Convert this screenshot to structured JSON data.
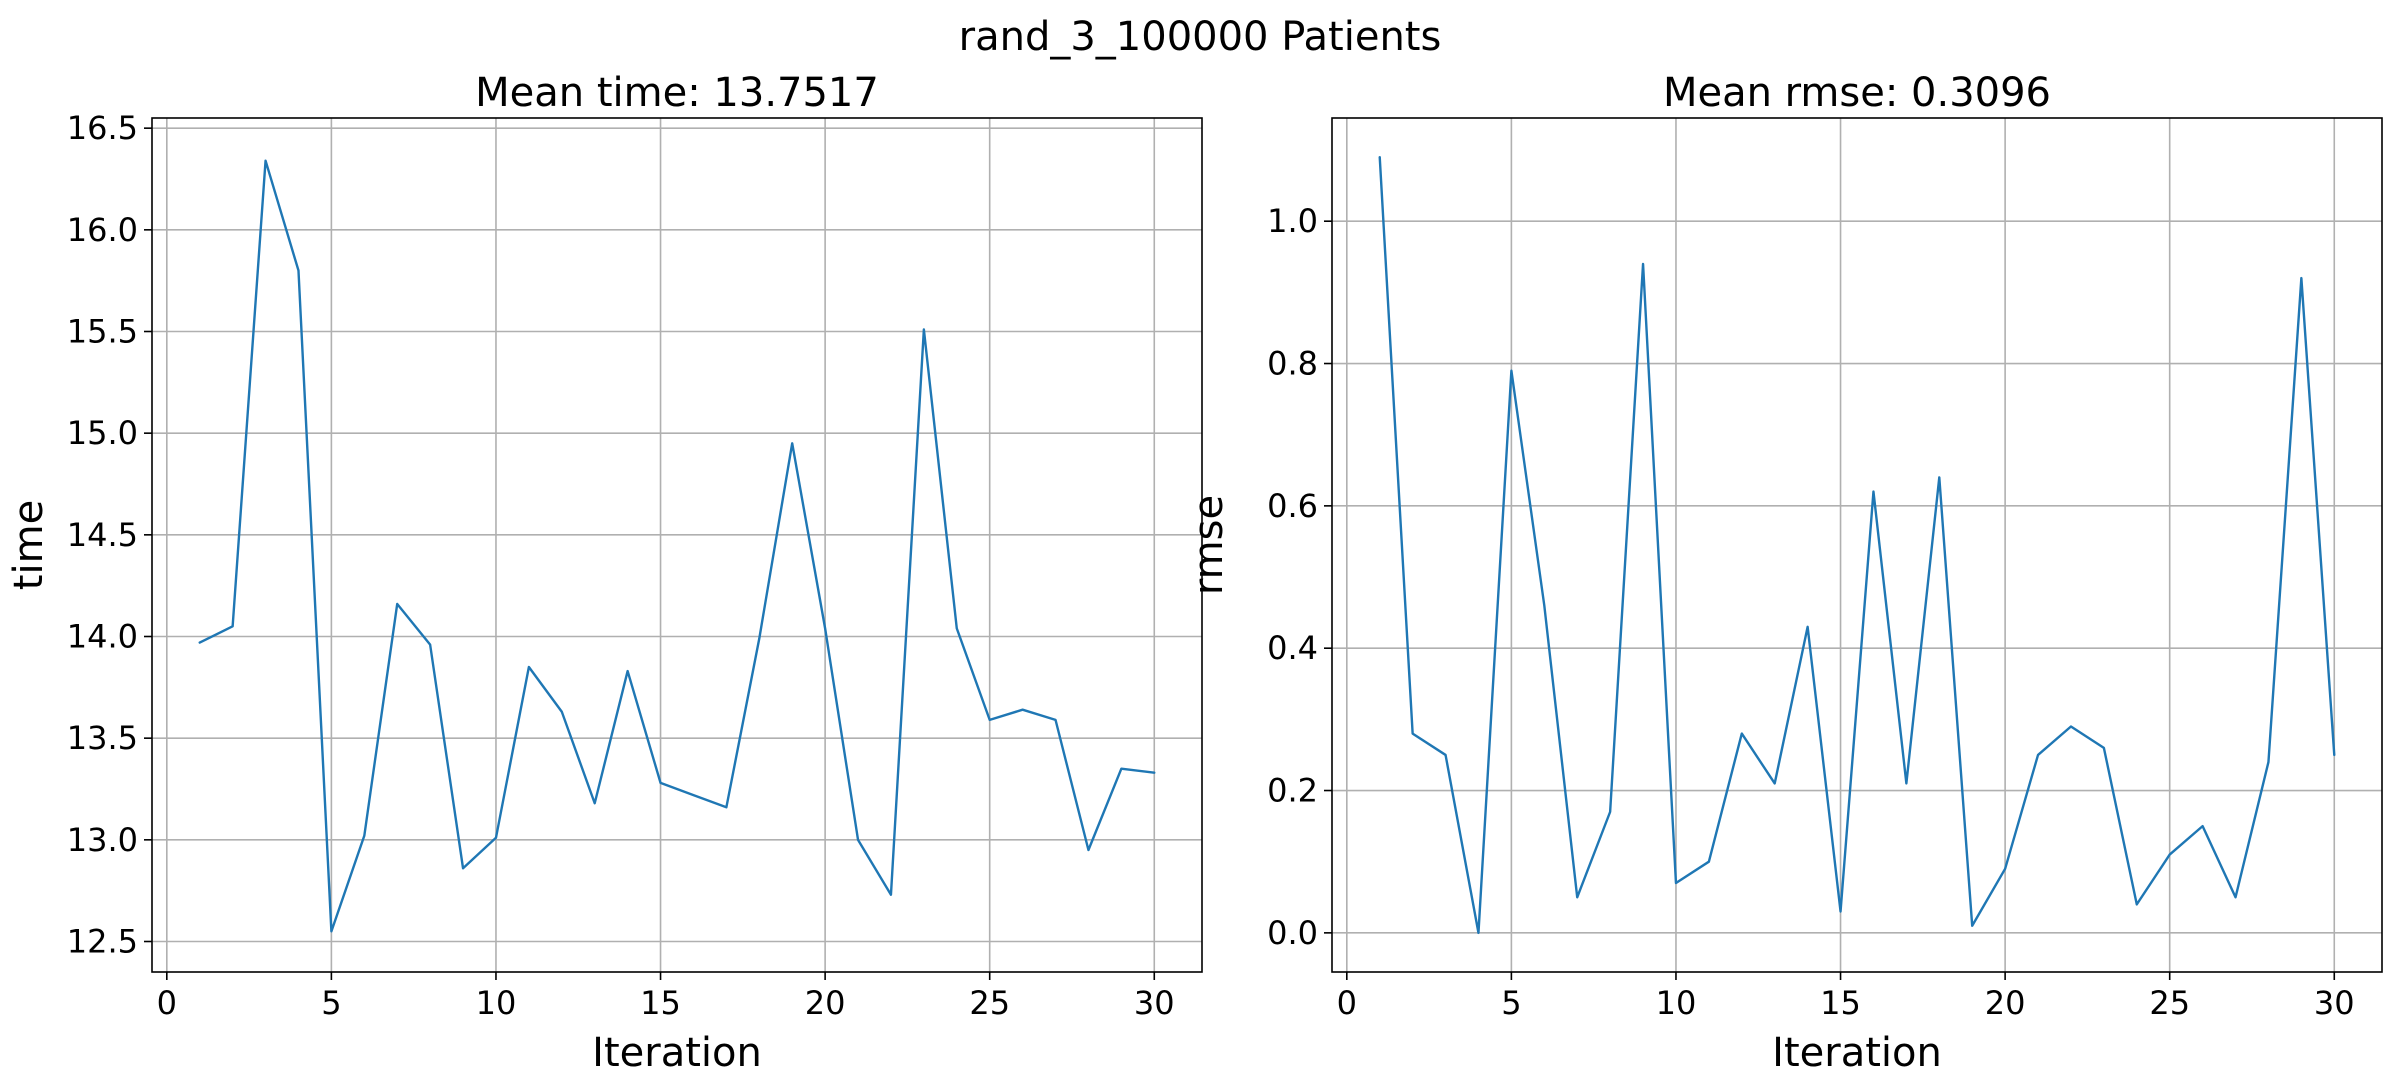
{
  "figure_title": "rand_3_100000 Patients",
  "colors": {
    "series": "#1f77b4",
    "grid": "#b0b0b0"
  },
  "chart_data": [
    {
      "type": "line",
      "title": "Mean time: 13.7517",
      "xlabel": "Iteration",
      "ylabel": "time",
      "xlim": [
        -0.45,
        31.45
      ],
      "ylim": [
        12.35,
        16.55
      ],
      "xticks": [
        0,
        5,
        10,
        15,
        20,
        25,
        30
      ],
      "xtick_labels": [
        "0",
        "5",
        "10",
        "15",
        "20",
        "25",
        "30"
      ],
      "yticks": [
        12.5,
        13.0,
        13.5,
        14.0,
        14.5,
        15.0,
        15.5,
        16.0,
        16.5
      ],
      "ytick_labels": [
        "12.5",
        "13.0",
        "13.5",
        "14.0",
        "14.5",
        "15.0",
        "15.5",
        "16.0",
        "16.5"
      ],
      "grid": true,
      "x": [
        1,
        2,
        3,
        4,
        5,
        6,
        7,
        8,
        9,
        10,
        11,
        12,
        13,
        14,
        15,
        16,
        17,
        18,
        19,
        20,
        21,
        22,
        23,
        24,
        25,
        26,
        27,
        28,
        29,
        30
      ],
      "series": [
        {
          "values": [
            13.97,
            14.05,
            16.34,
            15.8,
            12.55,
            13.02,
            14.16,
            13.96,
            12.86,
            13.01,
            13.85,
            13.63,
            13.18,
            13.83,
            13.28,
            13.22,
            13.16,
            13.99,
            14.95,
            14.04,
            13.0,
            12.73,
            15.51,
            14.04,
            13.59,
            13.64,
            13.59,
            12.95,
            13.35,
            13.33
          ]
        }
      ]
    },
    {
      "type": "line",
      "title": "Mean rmse: 0.3096",
      "xlabel": "Iteration",
      "ylabel": "rmse",
      "xlim": [
        -0.45,
        31.45
      ],
      "ylim": [
        -0.055,
        1.145
      ],
      "xticks": [
        0,
        5,
        10,
        15,
        20,
        25,
        30
      ],
      "xtick_labels": [
        "0",
        "5",
        "10",
        "15",
        "20",
        "25",
        "30"
      ],
      "yticks": [
        0.0,
        0.2,
        0.4,
        0.6,
        0.8,
        1.0
      ],
      "ytick_labels": [
        "0.0",
        "0.2",
        "0.4",
        "0.6",
        "0.8",
        "1.0"
      ],
      "grid": true,
      "x": [
        1,
        2,
        3,
        4,
        5,
        6,
        7,
        8,
        9,
        10,
        11,
        12,
        13,
        14,
        15,
        16,
        17,
        18,
        19,
        20,
        21,
        22,
        23,
        24,
        25,
        26,
        27,
        28,
        29,
        30
      ],
      "series": [
        {
          "values": [
            1.09,
            0.28,
            0.25,
            0.0,
            0.79,
            0.46,
            0.05,
            0.17,
            0.94,
            0.07,
            0.1,
            0.28,
            0.21,
            0.43,
            0.03,
            0.62,
            0.21,
            0.64,
            0.01,
            0.09,
            0.25,
            0.29,
            0.26,
            0.04,
            0.11,
            0.15,
            0.05,
            0.24,
            0.92,
            0.25
          ]
        }
      ]
    }
  ]
}
